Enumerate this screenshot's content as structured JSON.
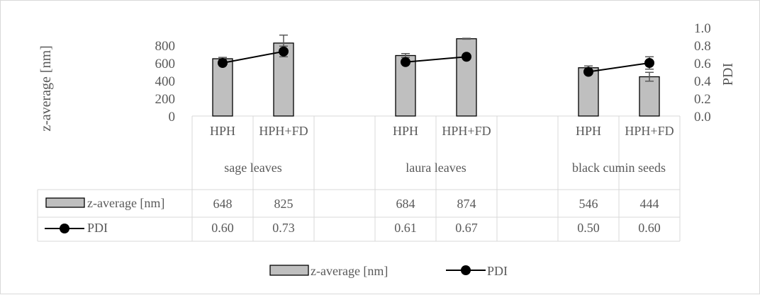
{
  "chart_data": {
    "type": "bar",
    "groups": [
      "sage leaves",
      "laura leaves",
      "black cumin seeds"
    ],
    "categories": [
      "HPH",
      "HPH+FD",
      "HPH",
      "HPH+FD",
      "HPH",
      "HPH+FD"
    ],
    "series": [
      {
        "name": "z-average [nm]",
        "type": "bar",
        "axis": "left",
        "values": [
          648,
          825,
          684,
          874,
          546,
          444
        ],
        "error": [
          15,
          90,
          22,
          5,
          20,
          50
        ],
        "color": "#bfbfbf"
      },
      {
        "name": "PDI",
        "type": "line",
        "axis": "right",
        "values": [
          0.6,
          0.73,
          0.61,
          0.67,
          0.5,
          0.6
        ],
        "error": [
          0.0,
          0.06,
          0.0,
          0.0,
          0.0,
          0.07
        ],
        "color": "#000000"
      }
    ],
    "table_values": {
      "z_average": [
        "648",
        "825",
        "684",
        "874",
        "546",
        "444"
      ],
      "pdi": [
        "0.60",
        "0.73",
        "0.61",
        "0.67",
        "0.50",
        "0.60"
      ]
    },
    "ylabel": "z-average [nm]",
    "y2label": "PDI",
    "ylim": [
      0,
      1000
    ],
    "y2lim": [
      0,
      1
    ],
    "yticks": [
      "0",
      "200",
      "400",
      "600",
      "800"
    ],
    "y2ticks": [
      "0.0",
      "0.2",
      "0.4",
      "0.6",
      "0.8",
      "1.0"
    ],
    "legend_position": "bottom",
    "data_table": true
  }
}
